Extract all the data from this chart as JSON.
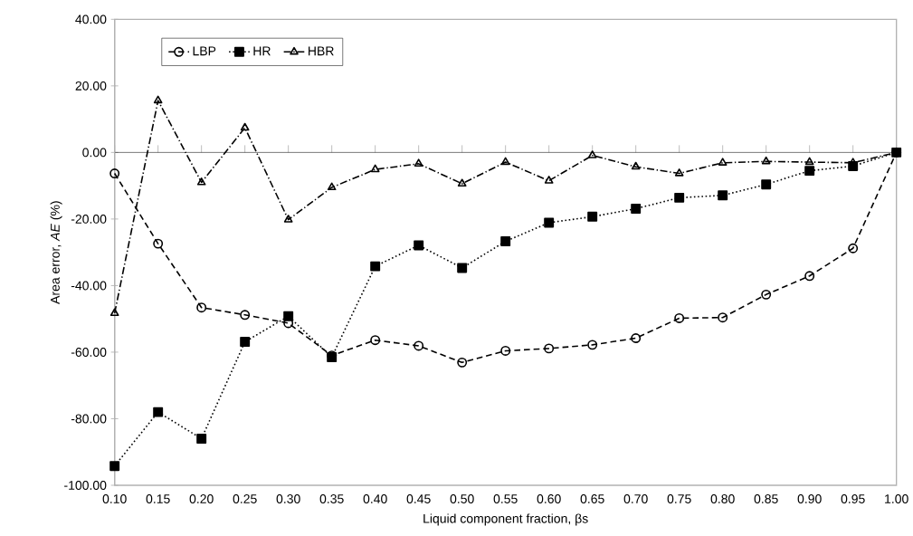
{
  "chart_data": {
    "type": "line",
    "xlabel": "Liquid component fraction, βs",
    "ylabel": "Area error, *AE* (%)",
    "categories": [
      "0.10",
      "0.15",
      "0.20",
      "0.25",
      "0.30",
      "0.35",
      "0.40",
      "0.45",
      "0.50",
      "0.55",
      "0.60",
      "0.65",
      "0.70",
      "0.75",
      "0.80",
      "0.85",
      "0.90",
      "0.95",
      "1.00"
    ],
    "series": [
      {
        "name": "LBP",
        "color": "#000000",
        "marker": "circle",
        "line_style": "dashed",
        "values": [
          -6.3,
          -27.4,
          -46.6,
          -48.8,
          -51.3,
          -61,
          -56.4,
          -58.1,
          -63.1,
          -59.6,
          -58.9,
          -57.8,
          -55.8,
          -49.8,
          -49.6,
          -42.7,
          -37.1,
          -28.8,
          0
        ]
      },
      {
        "name": "HR",
        "color": "#000000",
        "marker": "square",
        "line_style": "dotted",
        "values": [
          -94.2,
          -78,
          -86,
          -56.9,
          -49.2,
          -61.5,
          -34.2,
          -27.9,
          -34.7,
          -26.7,
          -21.1,
          -19.3,
          -16.9,
          -13.6,
          -12.9,
          -9.6,
          -5.5,
          -4.1,
          0
        ]
      },
      {
        "name": "HBR",
        "color": "#000000",
        "marker": "triangle",
        "line_style": "dashdot",
        "values": [
          -48.3,
          15.6,
          -9,
          7.4,
          -20.2,
          -10.5,
          -5.1,
          -3.4,
          -9.4,
          -2.9,
          -8.5,
          -0.9,
          -4.3,
          -6.3,
          -3.1,
          -2.7,
          -2.9,
          -3.1,
          0
        ]
      }
    ],
    "ylim": [
      -100,
      40
    ],
    "yticks": [
      {
        "value": -100,
        "label": "-100.00"
      },
      {
        "value": -80,
        "label": "-80.00"
      },
      {
        "value": -60,
        "label": "-60.00"
      },
      {
        "value": -40,
        "label": "-40.00"
      },
      {
        "value": -20,
        "label": "-20.00"
      },
      {
        "value": 0,
        "label": "0.00"
      },
      {
        "value": 20,
        "label": "20.00"
      },
      {
        "value": 40,
        "label": "40.00"
      }
    ],
    "legend": "top left"
  }
}
